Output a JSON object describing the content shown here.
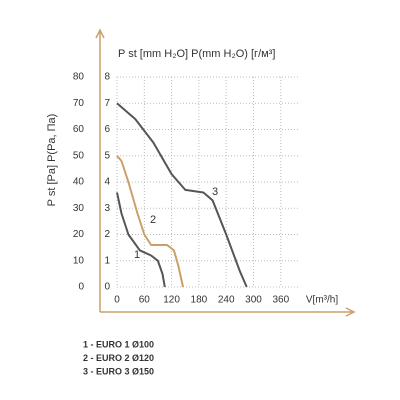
{
  "chart_data": {
    "type": "line",
    "title": "P st [mm H₂O] P(mm H₂O) [г/м³]",
    "ylabel": "P st [Pa] P(Pa, Па)",
    "xlabel": "V[m³/h]",
    "xlim": [
      0,
      400
    ],
    "xticks": [
      0,
      60,
      120,
      180,
      240,
      300,
      360
    ],
    "ylim": [
      0,
      80
    ],
    "yticks": [
      0,
      10,
      20,
      30,
      40,
      50,
      60,
      70,
      80
    ],
    "y2lim": [
      0,
      8
    ],
    "y2ticks": [
      0,
      1,
      2,
      3,
      4,
      5,
      6,
      7,
      8
    ],
    "grid": true,
    "axis_color": "#c9a06a",
    "series": [
      {
        "name": "1",
        "color": "#555555",
        "x": [
          0,
          10,
          25,
          50,
          75,
          90,
          100,
          105
        ],
        "values": [
          36,
          28,
          20,
          14,
          12,
          10,
          5,
          0
        ]
      },
      {
        "name": "2",
        "color": "#c9a06a",
        "x": [
          0,
          10,
          25,
          45,
          60,
          75,
          110,
          125,
          135,
          145
        ],
        "values": [
          50,
          48,
          40,
          28,
          20,
          16,
          16,
          14,
          8,
          0
        ]
      },
      {
        "name": "3",
        "color": "#555555",
        "x": [
          0,
          40,
          80,
          120,
          150,
          190,
          210,
          240,
          270,
          285
        ],
        "values": [
          70,
          64,
          55,
          43,
          37,
          36,
          33,
          20,
          6,
          0
        ]
      }
    ],
    "legend": [
      "1 - EURO 1 Ø100",
      "2 - EURO 2 Ø120",
      "3 - EURO 3 Ø150"
    ]
  }
}
